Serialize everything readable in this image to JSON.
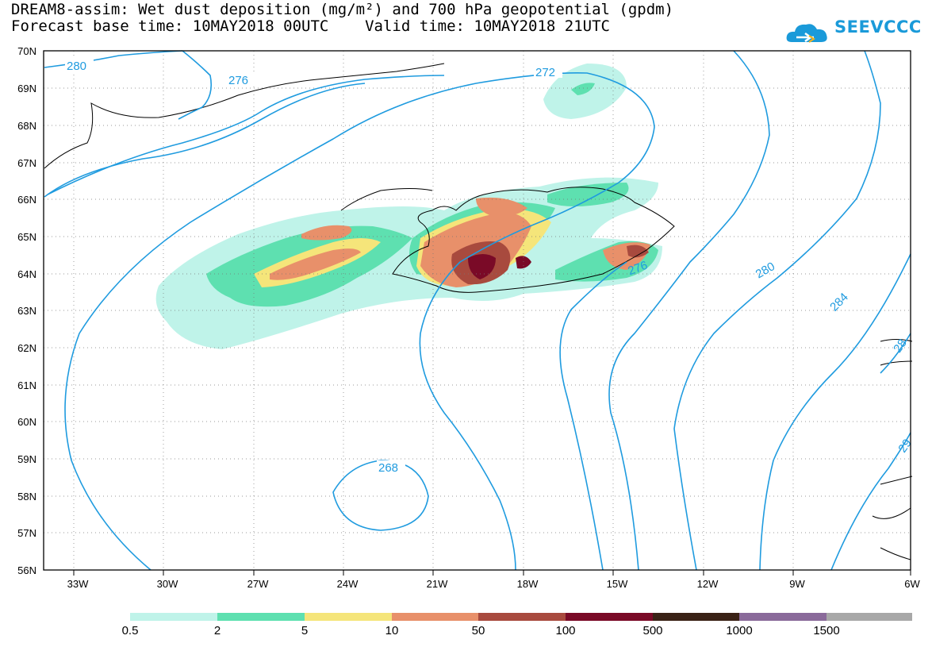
{
  "header": {
    "title": "DREAM8-assim: Wet dust deposition (mg/m²) and 700 hPa geopotential (gpdm)",
    "subtitle": "Forecast base time: 10MAY2018 00UTC    Valid time: 10MAY2018 21UTC"
  },
  "logo": {
    "text": "SEEVCCC",
    "icon": "cloud-icon",
    "color": "#1a9ad9"
  },
  "map": {
    "lat_labels": [
      "70N",
      "69N",
      "68N",
      "67N",
      "66N",
      "65N",
      "64N",
      "63N",
      "62N",
      "61N",
      "60N",
      "59N",
      "58N",
      "57N",
      "56N"
    ],
    "lon_labels": [
      "33W",
      "30W",
      "27W",
      "24W",
      "21W",
      "18W",
      "15W",
      "12W",
      "9W",
      "6W"
    ],
    "contour_labels": [
      "280",
      "276",
      "272",
      "268",
      "276",
      "280",
      "284",
      "28",
      "29"
    ],
    "contour_color": "#1f9bdf"
  },
  "legend": {
    "colors": [
      "#bff3e9",
      "#5ee0b0",
      "#f5e57a",
      "#e8906a",
      "#a84a3e",
      "#7a0a27",
      "#3a2216",
      "#8a6a9a",
      "#a8a8a8"
    ],
    "labels": [
      "0.5",
      "2",
      "5",
      "10",
      "50",
      "100",
      "500",
      "1000",
      "1500"
    ]
  }
}
